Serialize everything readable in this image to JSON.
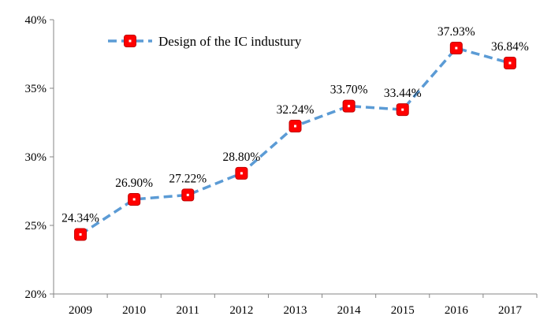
{
  "chart_data": {
    "type": "line",
    "categories": [
      "2009",
      "2010",
      "2011",
      "2012",
      "2013",
      "2014",
      "2015",
      "2016",
      "2017"
    ],
    "series": [
      {
        "name": "Design of the IC industury",
        "values": [
          24.34,
          26.9,
          27.22,
          28.8,
          32.24,
          33.7,
          33.44,
          37.93,
          36.84
        ],
        "data_labels": [
          "24.34%",
          "26.90%",
          "27.22%",
          "28.80%",
          "32.24%",
          "33.70%",
          "33.44%",
          "37.93%",
          "36.84%"
        ],
        "line_color": "#5B9BD5",
        "line_style": "dashed",
        "marker": "rounded-square",
        "marker_color": "#FF0000",
        "marker_edge_color": "#C00000"
      }
    ],
    "ylim": [
      20,
      40
    ],
    "yticks": [
      20,
      25,
      30,
      35,
      40
    ],
    "ytick_labels": [
      "20%",
      "25%",
      "30%",
      "35%",
      "40%"
    ],
    "xlabel": "",
    "ylabel": "",
    "title": "",
    "grid": false,
    "legend_position": "top-left"
  }
}
